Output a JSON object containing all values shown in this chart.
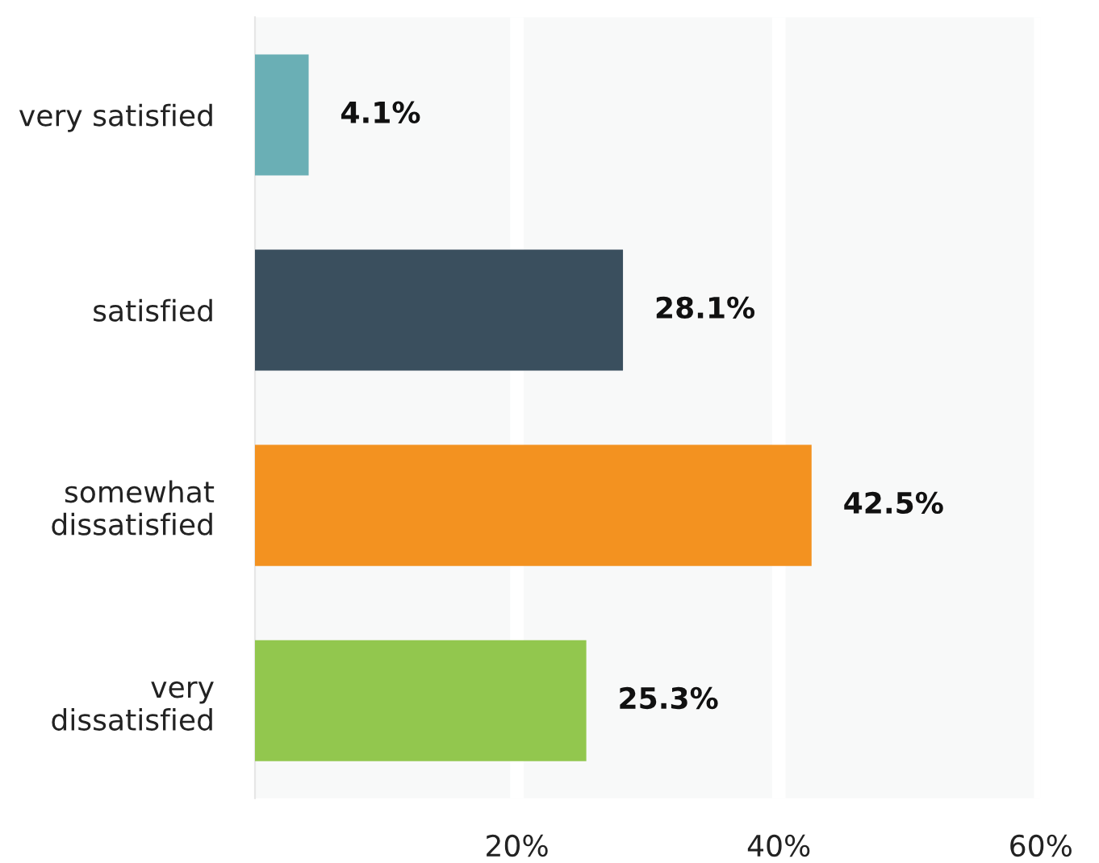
{
  "chart_data": {
    "type": "bar",
    "orientation": "horizontal",
    "categories": [
      "very satisfied",
      "satisfied",
      "somewhat\ndissatisfied",
      "very\ndissatisfied"
    ],
    "values": [
      4.1,
      28.1,
      42.5,
      25.3
    ],
    "colors": [
      "#6aafb5",
      "#3a4f5e",
      "#f39220",
      "#92c74e"
    ],
    "value_labels": [
      "4.1%",
      "28.1%",
      "42.5%",
      "25.3%"
    ],
    "xlim": [
      0,
      60
    ],
    "xticks": [
      {
        "value": 20,
        "label": "20%"
      },
      {
        "value": 40,
        "label": "40%"
      },
      {
        "value": 60,
        "label": "60%"
      }
    ],
    "grid": "x"
  }
}
